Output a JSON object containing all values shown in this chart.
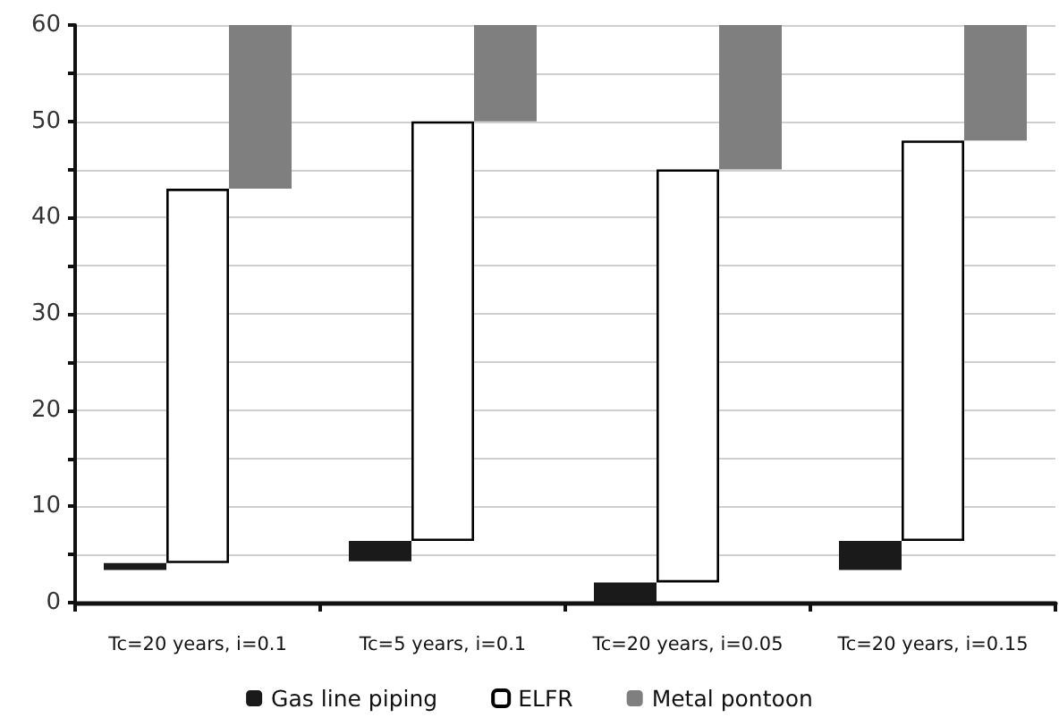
{
  "chart_data": {
    "type": "bar",
    "categories": [
      "Tc=20 years, i=0.1",
      "Tc=5 years, i=0.1",
      "Tc=20 years, i=0.05",
      "Tc=20 years, i=0.15"
    ],
    "series": [
      {
        "name": "Gas line piping",
        "color": "#1a1a1a",
        "base": [
          3.4,
          4.3,
          0,
          3.4
        ],
        "values": [
          0.7,
          2.1,
          2.1,
          3.0
        ]
      },
      {
        "name": "ELFR",
        "color": "#ffffff",
        "base": [
          4.1,
          6.4,
          2.1,
          6.4
        ],
        "values": [
          38.9,
          43.6,
          42.9,
          41.6
        ]
      },
      {
        "name": "Metal pontoon",
        "color": "#7f7f80",
        "base": [
          43,
          50,
          45,
          48
        ],
        "values": [
          17,
          10,
          15,
          12
        ]
      }
    ],
    "ylim": [
      0,
      60
    ],
    "yticks": [
      0,
      {
        "value": 5,
        "label": null
      },
      10,
      {
        "value": 15,
        "label": null
      },
      20,
      {
        "value": 25,
        "label": null
      },
      30,
      {
        "value": 35,
        "label": null
      },
      40,
      {
        "value": 45,
        "label": null
      },
      50,
      {
        "value": 55,
        "label": null
      },
      60
    ],
    "grid": "y",
    "legend": "bottom"
  }
}
